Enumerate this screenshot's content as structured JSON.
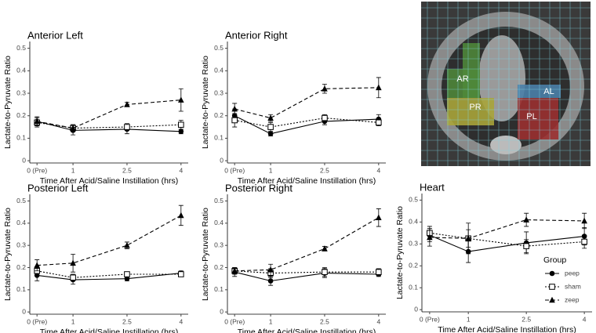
{
  "chart_data": [
    {
      "type": "line",
      "title": "Anterior Left",
      "x_label": "Time After Acid/Saline Instillation (hrs)",
      "y_label": "Lactate-to-Pyruvate Ratio",
      "x": [
        0,
        1,
        2.5,
        4
      ],
      "xlim": [
        -0.2,
        4.2
      ],
      "xticks": [
        {
          "value": 0,
          "label": "0 (Pre)"
        },
        1,
        2.5,
        4
      ],
      "ylim": [
        -0.01,
        0.53
      ],
      "yticks": [
        0,
        0.1,
        0.2,
        0.3,
        0.4,
        0.5
      ],
      "series": [
        {
          "name": "peep",
          "color": "#000000",
          "marker": "circle",
          "line_style": "solid",
          "values": [
            0.175,
            0.135,
            0.14,
            0.13
          ],
          "errors": [
            0.02,
            0.02,
            0.02,
            0.01
          ]
        },
        {
          "name": "sham",
          "color": "#000000",
          "marker": "square",
          "line_style": "dotted",
          "values": [
            0.17,
            0.145,
            0.15,
            0.16
          ],
          "errors": [
            0.02,
            0.015,
            0.015,
            0.02
          ]
        },
        {
          "name": "zeep",
          "color": "#000000",
          "marker": "triangle",
          "line_style": "dashed",
          "values": [
            0.175,
            0.145,
            0.25,
            0.27
          ],
          "errors": [
            0.02,
            0.015,
            0.01,
            0.05
          ]
        }
      ]
    },
    {
      "type": "line",
      "title": "Anterior Right",
      "x_label": "Time After Acid/Saline Instillation (hrs)",
      "y_label": "Lactate-to-Pyruvate Ratio",
      "x": [
        0,
        1,
        2.5,
        4
      ],
      "xlim": [
        -0.2,
        4.2
      ],
      "xticks": [
        {
          "value": 0,
          "label": "0 (Pre)"
        },
        1,
        2.5,
        4
      ],
      "ylim": [
        -0.01,
        0.53
      ],
      "yticks": [
        0,
        0.1,
        0.2,
        0.3,
        0.4,
        0.5
      ],
      "series": [
        {
          "name": "peep",
          "color": "#000000",
          "marker": "circle",
          "line_style": "solid",
          "values": [
            0.2,
            0.12,
            0.175,
            0.185
          ],
          "errors": [
            0.03,
            0.01,
            0.015,
            0.02
          ]
        },
        {
          "name": "sham",
          "color": "#000000",
          "marker": "square",
          "line_style": "dotted",
          "values": [
            0.18,
            0.15,
            0.19,
            0.17
          ],
          "errors": [
            0.03,
            0.02,
            0.015,
            0.015
          ]
        },
        {
          "name": "zeep",
          "color": "#000000",
          "marker": "triangle",
          "line_style": "dashed",
          "values": [
            0.23,
            0.19,
            0.32,
            0.325
          ],
          "errors": [
            0.025,
            0.015,
            0.02,
            0.045
          ]
        }
      ]
    },
    {
      "type": "line",
      "title": "Posterior Left",
      "x_label": "Time After Acid/Saline Instillation (hrs)",
      "y_label": "Lactate-to-Pyruvate Ratio",
      "x": [
        0,
        1,
        2.5,
        4
      ],
      "xlim": [
        -0.2,
        4.2
      ],
      "xticks": [
        {
          "value": 0,
          "label": "0 (Pre)"
        },
        1,
        2.5,
        4
      ],
      "ylim": [
        -0.01,
        0.53
      ],
      "yticks": [
        0,
        0.1,
        0.2,
        0.3,
        0.4,
        0.5
      ],
      "series": [
        {
          "name": "peep",
          "color": "#000000",
          "marker": "circle",
          "line_style": "solid",
          "values": [
            0.165,
            0.145,
            0.15,
            0.175
          ],
          "errors": [
            0.025,
            0.02,
            0.01,
            0.01
          ]
        },
        {
          "name": "sham",
          "color": "#000000",
          "marker": "square",
          "line_style": "dotted",
          "values": [
            0.185,
            0.155,
            0.17,
            0.17
          ],
          "errors": [
            0.02,
            0.015,
            0.01,
            0.01
          ]
        },
        {
          "name": "zeep",
          "color": "#000000",
          "marker": "triangle",
          "line_style": "dashed",
          "values": [
            0.21,
            0.22,
            0.3,
            0.435
          ],
          "errors": [
            0.025,
            0.04,
            0.015,
            0.045
          ]
        }
      ]
    },
    {
      "type": "line",
      "title": "Posterior Right",
      "x_label": "Time After Acid/Saline Instillation (hrs)",
      "y_label": "Lactate-to-Pyruvate Ratio",
      "x": [
        0,
        1,
        2.5,
        4
      ],
      "xlim": [
        -0.2,
        4.2
      ],
      "xticks": [
        {
          "value": 0,
          "label": "0 (Pre)"
        },
        1,
        2.5,
        4
      ],
      "ylim": [
        -0.01,
        0.53
      ],
      "yticks": [
        0,
        0.1,
        0.2,
        0.3,
        0.4,
        0.5
      ],
      "series": [
        {
          "name": "peep",
          "color": "#000000",
          "marker": "circle",
          "line_style": "solid",
          "values": [
            0.18,
            0.14,
            0.175,
            0.17
          ],
          "errors": [
            0.02,
            0.02,
            0.02,
            0.01
          ]
        },
        {
          "name": "sham",
          "color": "#000000",
          "marker": "square",
          "line_style": "dotted",
          "values": [
            0.185,
            0.175,
            0.18,
            0.18
          ],
          "errors": [
            0.015,
            0.02,
            0.02,
            0.015
          ]
        },
        {
          "name": "zeep",
          "color": "#000000",
          "marker": "triangle",
          "line_style": "dashed",
          "values": [
            0.185,
            0.19,
            0.285,
            0.425
          ],
          "errors": [
            0.01,
            0.025,
            0.01,
            0.04
          ]
        }
      ]
    },
    {
      "type": "line",
      "title": "Heart",
      "x_label": "Time After Acid/Saline Instillation (hrs)",
      "y_label": "Lactate-to-Pyruvate Ratio",
      "x": [
        0,
        1,
        2.5,
        4
      ],
      "xlim": [
        -0.2,
        4.2
      ],
      "xticks": [
        {
          "value": 0,
          "label": "0 (Pre)"
        },
        1,
        2.5,
        4
      ],
      "ylim": [
        -0.01,
        0.53
      ],
      "yticks": [
        0,
        0.1,
        0.2,
        0.3,
        0.4,
        0.5
      ],
      "legend": "right",
      "legend_title": "Group",
      "series": [
        {
          "name": "peep",
          "color": "#000000",
          "marker": "circle",
          "line_style": "solid",
          "values": [
            0.34,
            0.265,
            0.305,
            0.335
          ],
          "errors": [
            0.03,
            0.05,
            0.05,
            0.04
          ]
        },
        {
          "name": "sham",
          "color": "#000000",
          "marker": "square",
          "line_style": "dotted",
          "values": [
            0.35,
            0.325,
            0.29,
            0.31
          ],
          "errors": [
            0.03,
            0.04,
            0.03,
            0.03
          ]
        },
        {
          "name": "zeep",
          "color": "#000000",
          "marker": "triangle",
          "line_style": "dashed",
          "values": [
            0.33,
            0.325,
            0.41,
            0.405
          ],
          "errors": [
            0.04,
            0.07,
            0.03,
            0.035
          ]
        }
      ]
    }
  ],
  "image_labels": [
    "AR",
    "PR",
    "AL",
    "PL"
  ]
}
